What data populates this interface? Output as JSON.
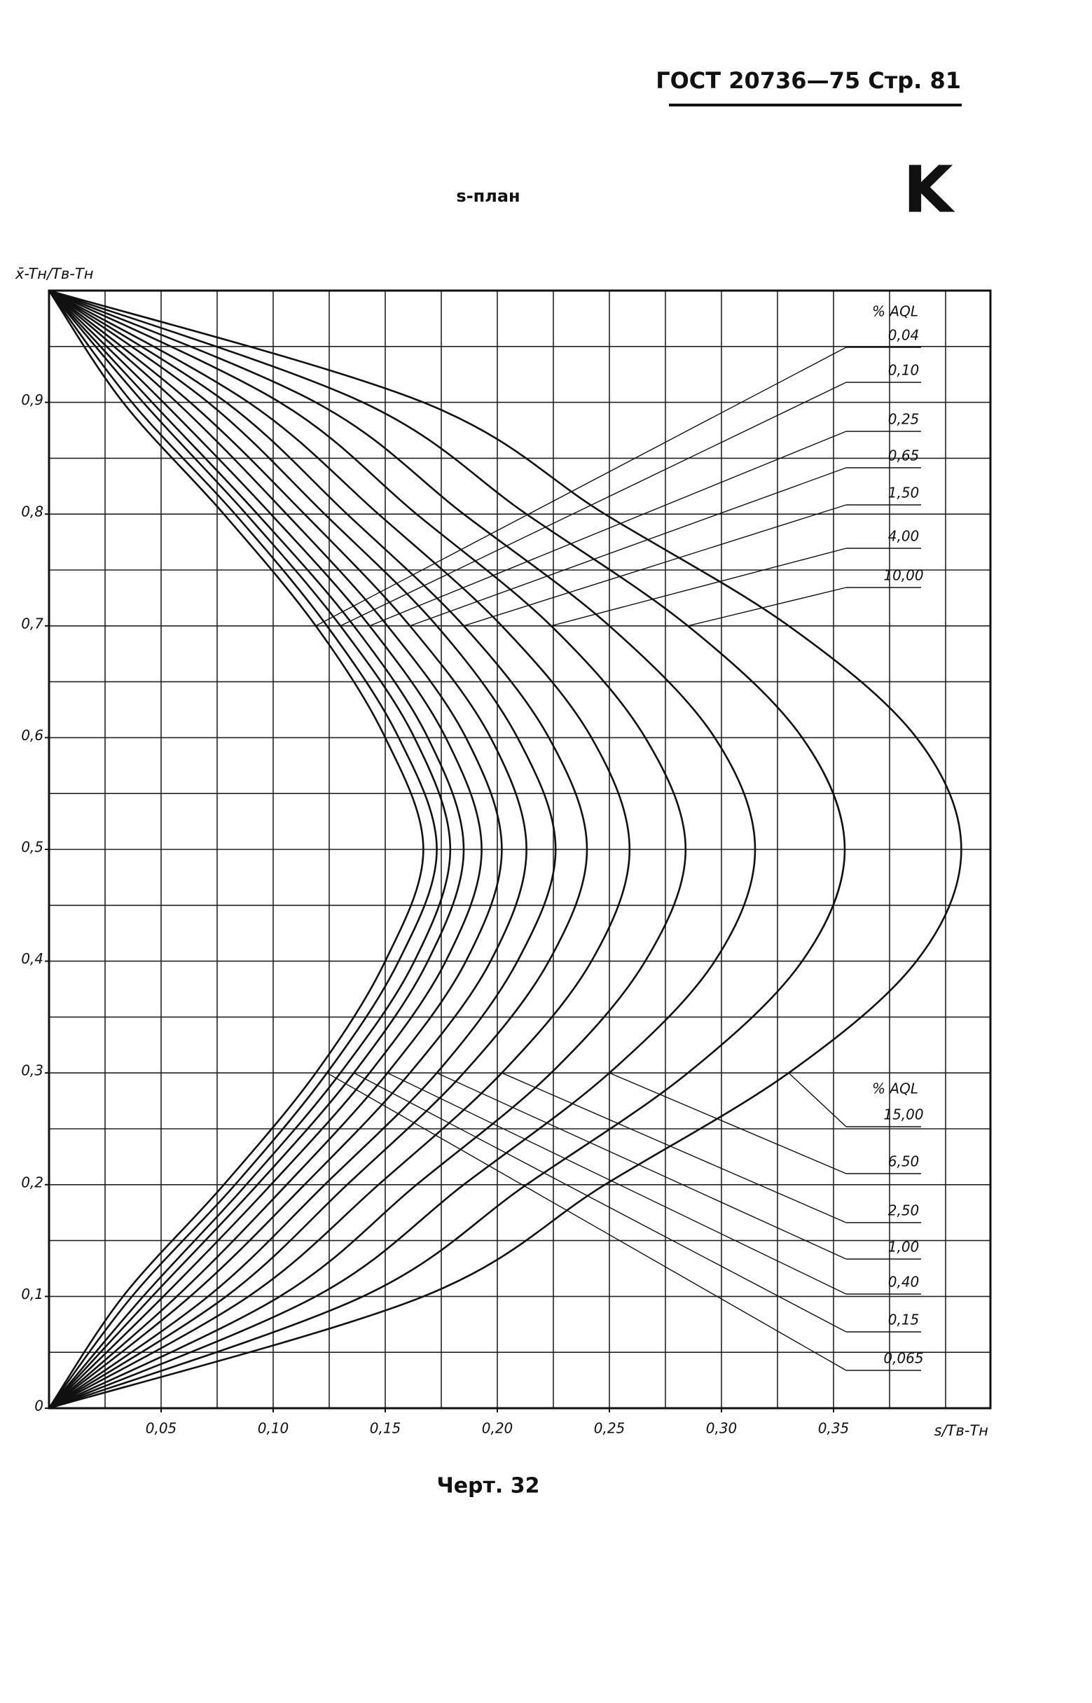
{
  "header": {
    "text": "ГОСТ 20736—75 Стр. 81",
    "letter": "K"
  },
  "chart_data": {
    "type": "line",
    "title": "s-план",
    "y_label": "x̄-Tн/Tв-Tн",
    "x_label": "s/Tв-Tн",
    "caption": "Черт. 32",
    "legend_titles": [
      "% AQL",
      "% AQL"
    ],
    "xlim": [
      0,
      0.42
    ],
    "ylim": [
      0,
      1
    ],
    "xticks": [
      {
        "value": 0.05,
        "label": "0,05"
      },
      {
        "value": 0.1,
        "label": "0,10"
      },
      {
        "value": 0.15,
        "label": "0,15"
      },
      {
        "value": 0.2,
        "label": "0,20"
      },
      {
        "value": 0.25,
        "label": "0,25"
      },
      {
        "value": 0.3,
        "label": "0,30"
      },
      {
        "value": 0.35,
        "label": "0,35"
      }
    ],
    "yticks": [
      0,
      {
        "value": 0.1,
        "label": "0,1"
      },
      {
        "value": 0.2,
        "label": "0,2"
      },
      {
        "value": 0.3,
        "label": "0,3"
      },
      {
        "value": 0.4,
        "label": "0,4"
      },
      {
        "value": 0.5,
        "label": "0,5"
      },
      {
        "value": 0.6,
        "label": "0,6"
      },
      {
        "value": 0.7,
        "label": "0,7"
      },
      {
        "value": 0.8,
        "label": "0,8"
      },
      {
        "value": 0.9,
        "label": "0,9"
      }
    ],
    "xgrid": [
      0,
      0.025,
      0.05,
      0.075,
      0.1,
      0.125,
      0.15,
      0.175,
      0.2,
      0.225,
      0.25,
      0.275,
      0.3,
      0.325,
      0.35,
      0.375,
      0.4,
      0.42
    ],
    "ygrid": [
      0,
      0.05,
      0.1,
      0.15,
      0.2,
      0.25,
      0.3,
      0.35,
      0.4,
      0.45,
      0.5,
      0.55,
      0.6,
      0.65,
      0.7,
      0.75,
      0.8,
      0.85,
      0.9,
      0.95,
      1
    ],
    "grid": true,
    "color": "#111111",
    "series": [
      {
        "name": "0,04",
        "x": [
          0,
          0.033,
          0.078,
          0.119,
          0.15,
          0.167,
          0.15,
          0.119,
          0.078,
          0.033,
          0
        ],
        "values": [
          0,
          0.1,
          0.2,
          0.3,
          0.4,
          0.5,
          0.6,
          0.7,
          0.8,
          0.9,
          1
        ]
      },
      {
        "name": "0,065",
        "x": [
          0,
          0.037,
          0.083,
          0.124,
          0.156,
          0.173,
          0.156,
          0.124,
          0.083,
          0.037,
          0
        ],
        "values": [
          0,
          0.1,
          0.2,
          0.3,
          0.4,
          0.5,
          0.6,
          0.7,
          0.8,
          0.9,
          1
        ]
      },
      {
        "name": "0,10",
        "x": [
          0,
          0.042,
          0.088,
          0.13,
          0.163,
          0.179,
          0.163,
          0.13,
          0.088,
          0.042,
          0
        ],
        "values": [
          0,
          0.1,
          0.2,
          0.3,
          0.4,
          0.5,
          0.6,
          0.7,
          0.8,
          0.9,
          1
        ]
      },
      {
        "name": "0,15",
        "x": [
          0,
          0.046,
          0.093,
          0.136,
          0.169,
          0.185,
          0.169,
          0.136,
          0.093,
          0.046,
          0
        ],
        "values": [
          0,
          0.1,
          0.2,
          0.3,
          0.4,
          0.5,
          0.6,
          0.7,
          0.8,
          0.9,
          1
        ]
      },
      {
        "name": "0,25",
        "x": [
          0,
          0.051,
          0.099,
          0.143,
          0.177,
          0.193,
          0.177,
          0.143,
          0.099,
          0.051,
          0
        ],
        "values": [
          0,
          0.1,
          0.2,
          0.3,
          0.4,
          0.5,
          0.6,
          0.7,
          0.8,
          0.9,
          1
        ]
      },
      {
        "name": "0,40",
        "x": [
          0,
          0.057,
          0.106,
          0.151,
          0.186,
          0.202,
          0.186,
          0.151,
          0.106,
          0.057,
          0
        ],
        "values": [
          0,
          0.1,
          0.2,
          0.3,
          0.4,
          0.5,
          0.6,
          0.7,
          0.8,
          0.9,
          1
        ]
      },
      {
        "name": "0,65",
        "x": [
          0,
          0.063,
          0.114,
          0.161,
          0.197,
          0.213,
          0.197,
          0.161,
          0.114,
          0.063,
          0
        ],
        "values": [
          0,
          0.1,
          0.2,
          0.3,
          0.4,
          0.5,
          0.6,
          0.7,
          0.8,
          0.9,
          1
        ]
      },
      {
        "name": "1,00",
        "x": [
          0,
          0.071,
          0.123,
          0.173,
          0.209,
          0.226,
          0.209,
          0.173,
          0.123,
          0.071,
          0
        ],
        "values": [
          0,
          0.1,
          0.2,
          0.3,
          0.4,
          0.5,
          0.6,
          0.7,
          0.8,
          0.9,
          1
        ]
      },
      {
        "name": "1,50",
        "x": [
          0,
          0.079,
          0.133,
          0.185,
          0.223,
          0.24,
          0.223,
          0.185,
          0.133,
          0.079,
          0
        ],
        "values": [
          0,
          0.1,
          0.2,
          0.3,
          0.4,
          0.5,
          0.6,
          0.7,
          0.8,
          0.9,
          1
        ]
      },
      {
        "name": "2,50",
        "x": [
          0,
          0.089,
          0.147,
          0.202,
          0.242,
          0.259,
          0.242,
          0.202,
          0.147,
          0.089,
          0
        ],
        "values": [
          0,
          0.1,
          0.2,
          0.3,
          0.4,
          0.5,
          0.6,
          0.7,
          0.8,
          0.9,
          1
        ]
      },
      {
        "name": "4,00",
        "x": [
          0,
          0.103,
          0.164,
          0.224,
          0.266,
          0.284,
          0.266,
          0.224,
          0.164,
          0.103,
          0
        ],
        "values": [
          0,
          0.1,
          0.2,
          0.3,
          0.4,
          0.5,
          0.6,
          0.7,
          0.8,
          0.9,
          1
        ]
      },
      {
        "name": "6,50",
        "x": [
          0,
          0.119,
          0.185,
          0.25,
          0.297,
          0.315,
          0.297,
          0.25,
          0.185,
          0.119,
          0
        ],
        "values": [
          0,
          0.1,
          0.2,
          0.3,
          0.4,
          0.5,
          0.6,
          0.7,
          0.8,
          0.9,
          1
        ]
      },
      {
        "name": "10,00",
        "x": [
          0,
          0.14,
          0.213,
          0.285,
          0.336,
          0.355,
          0.336,
          0.285,
          0.213,
          0.14,
          0
        ],
        "values": [
          0,
          0.1,
          0.2,
          0.3,
          0.4,
          0.5,
          0.6,
          0.7,
          0.8,
          0.9,
          1
        ]
      },
      {
        "name": "15,00",
        "x": [
          0,
          0.167,
          0.248,
          0.33,
          0.387,
          0.407,
          0.387,
          0.33,
          0.248,
          0.167,
          0
        ],
        "values": [
          0,
          0.1,
          0.2,
          0.3,
          0.4,
          0.5,
          0.6,
          0.7,
          0.8,
          0.9,
          1
        ]
      }
    ]
  }
}
